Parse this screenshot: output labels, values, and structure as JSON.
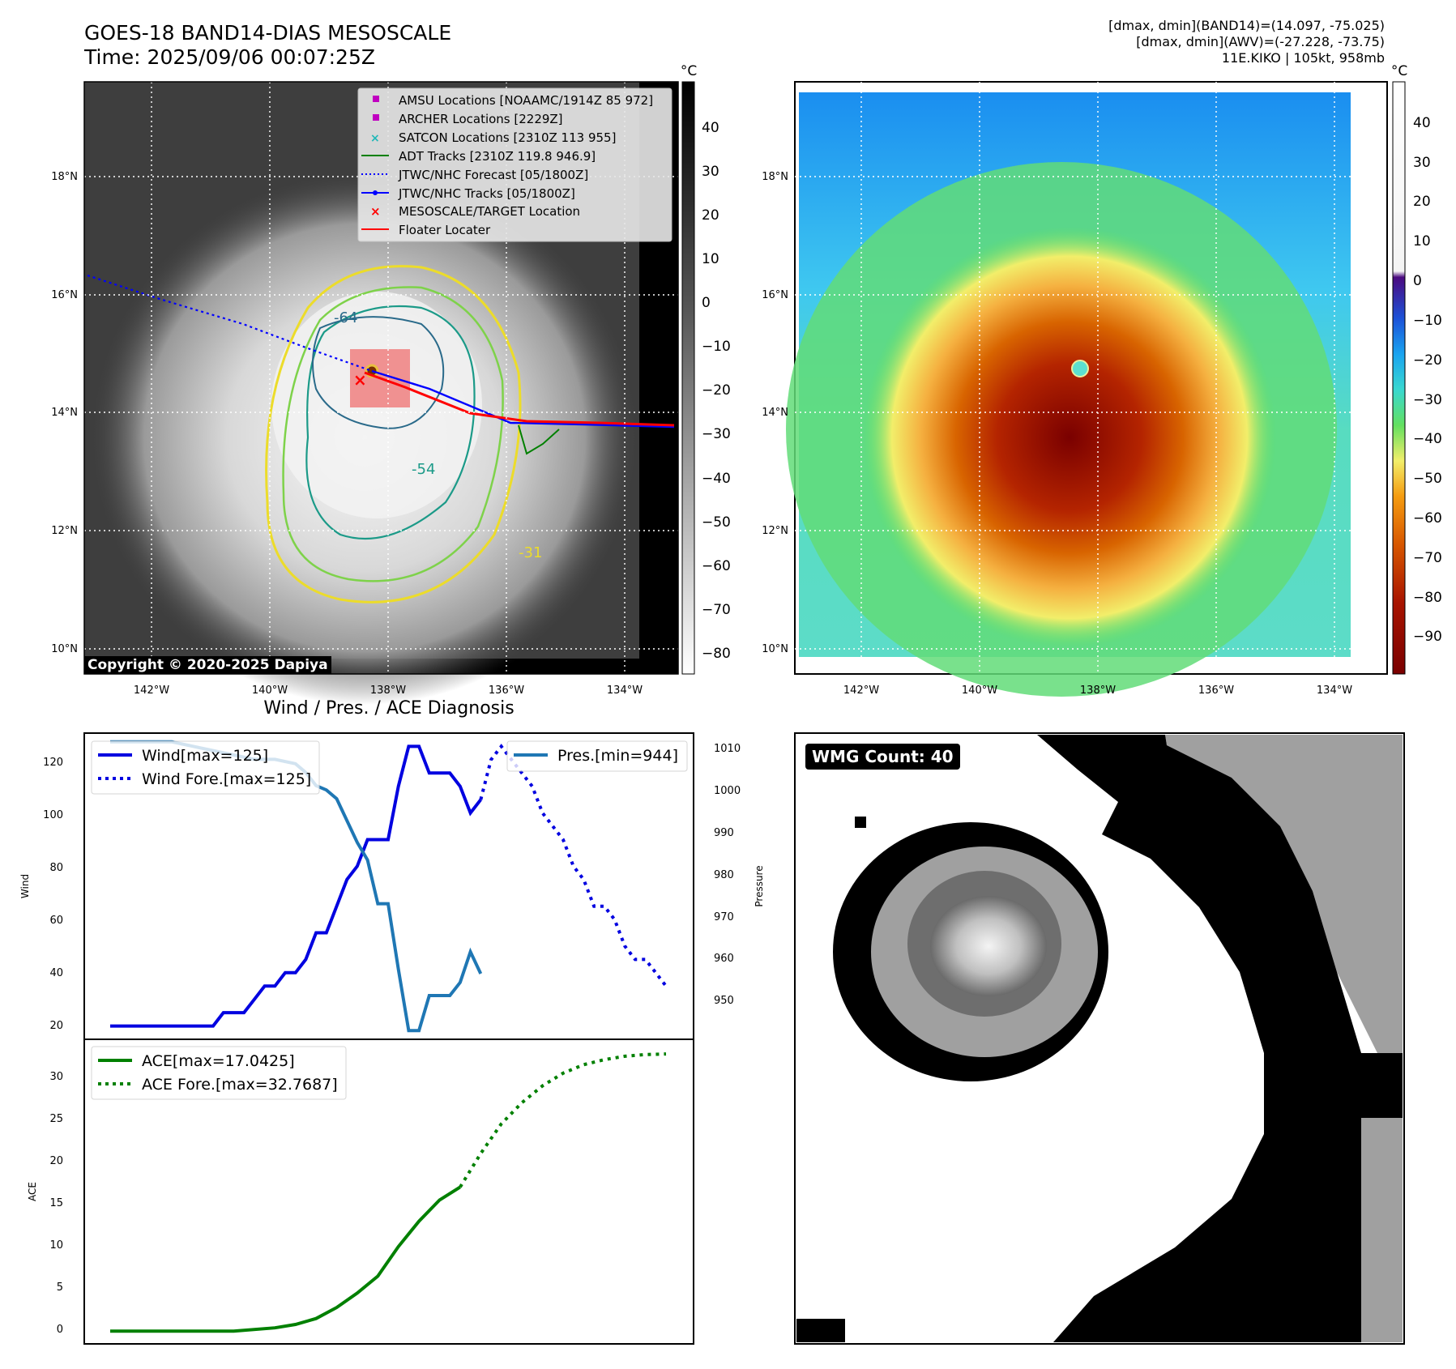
{
  "header": {
    "title_line1": "GOES-18 BAND14-DIAS MESOSCALE",
    "title_line2": "Time: 2025/09/06 00:07:25Z",
    "info_line1": "[dmax, dmin](BAND14)=(14.097, -75.025)",
    "info_line2": "[dmax, dmin](AWV)=(-27.228, -73.75)",
    "info_line3": "11E.KIKO | 105kt, 958mb"
  },
  "map": {
    "lon_ticks": [
      "142°W",
      "140°W",
      "138°W",
      "136°W",
      "134°W"
    ],
    "lat_ticks": [
      "18°N",
      "16°N",
      "14°N",
      "12°N",
      "10°N"
    ],
    "copyright": "Copyright © 2020-2025 Dapiya",
    "legend": [
      {
        "label": "AMSU Locations [NOAAMC/1914Z 85 972]",
        "color": "#c000c0",
        "kind": "square"
      },
      {
        "label": "ARCHER Locations [2229Z]",
        "color": "#c000c0",
        "kind": "square"
      },
      {
        "label": "SATCON Locations [2310Z 113 955]",
        "color": "#20b8b8",
        "kind": "x"
      },
      {
        "label": "ADT Tracks [2310Z 119.8 946.9]",
        "color": "#008000",
        "kind": "line"
      },
      {
        "label": "JTWC/NHC Forecast [05/1800Z]",
        "color": "#0000ff",
        "kind": "dotted"
      },
      {
        "label": "JTWC/NHC Tracks [05/1800Z]",
        "color": "#0000ff",
        "kind": "dotline"
      },
      {
        "label": "MESOSCALE/TARGET Location",
        "color": "#ff0000",
        "kind": "x"
      },
      {
        "label": "Floater Locater",
        "color": "#ff0000",
        "kind": "line"
      }
    ],
    "contour_labels": [
      "-64",
      "-54",
      "-31"
    ],
    "colorbar_gray": {
      "unit": "°C",
      "ticks": [
        "40",
        "30",
        "20",
        "10",
        "0",
        "−10",
        "−20",
        "−30",
        "−40",
        "−50",
        "−60",
        "−70",
        "−80"
      ]
    },
    "colorbar_color": {
      "unit": "°C",
      "ticks": [
        "40",
        "30",
        "20",
        "10",
        "0",
        "−10",
        "−20",
        "−30",
        "−40",
        "−50",
        "−60",
        "−70",
        "−80",
        "−90"
      ]
    }
  },
  "diagnosis": {
    "title": "Wind / Pres. / ACE Diagnosis",
    "wind_ylabel": "Wind",
    "pres_ylabel": "Pressure",
    "ace_ylabel": "ACE",
    "wind_ticks": [
      "120",
      "100",
      "80",
      "60",
      "40",
      "20"
    ],
    "pres_ticks": [
      "1010",
      "1000",
      "990",
      "980",
      "970",
      "960",
      "950"
    ],
    "ace_ticks": [
      "30",
      "25",
      "20",
      "15",
      "10",
      "5",
      "0"
    ],
    "legend_wind": "Wind[max=125]",
    "legend_wind_fore": "Wind Fore.[max=125]",
    "legend_pres": "Pres.[min=944]",
    "legend_ace": "ACE[max=17.0425]",
    "legend_ace_fore": "ACE Fore.[max=32.7687]"
  },
  "wmg": {
    "label": "WMG Count: 40"
  },
  "chart_data": [
    {
      "type": "line",
      "title": "Wind / Pres. / ACE Diagnosis",
      "ylabel": "Wind",
      "ylim": [
        15,
        130
      ],
      "x": [
        0,
        1,
        2,
        3,
        4,
        5,
        6,
        7,
        8,
        9,
        10,
        11,
        12,
        13,
        14,
        15,
        16,
        17,
        18,
        19,
        20,
        21,
        22,
        23,
        24,
        25,
        26,
        27,
        28,
        29,
        30,
        31,
        32,
        33,
        34,
        35,
        36,
        37,
        38,
        39,
        40,
        41,
        42,
        43,
        44,
        45,
        46,
        47,
        48,
        49,
        50,
        51,
        52,
        53,
        54
      ],
      "series": [
        {
          "name": "Wind[max=125]",
          "color": "#0000e0",
          "values": [
            20,
            20,
            20,
            20,
            20,
            20,
            20,
            20,
            20,
            20,
            20,
            25,
            25,
            25,
            30,
            35,
            35,
            40,
            40,
            45,
            55,
            55,
            65,
            75,
            80,
            90,
            90,
            90,
            110,
            125,
            125,
            115,
            115,
            115,
            110,
            100,
            105,
            null,
            null,
            null,
            null,
            null,
            null,
            null,
            null,
            null,
            null,
            null,
            null,
            null,
            null,
            null,
            null,
            null,
            null
          ]
        },
        {
          "name": "Wind Fore.[max=125]",
          "color": "#0000e0",
          "style": "dotted",
          "values": [
            null,
            null,
            null,
            null,
            null,
            null,
            null,
            null,
            null,
            null,
            null,
            null,
            null,
            null,
            null,
            null,
            null,
            null,
            null,
            null,
            null,
            null,
            null,
            null,
            null,
            null,
            null,
            null,
            null,
            null,
            null,
            null,
            null,
            null,
            null,
            null,
            105,
            120,
            125,
            120,
            115,
            110,
            100,
            95,
            90,
            80,
            75,
            65,
            65,
            60,
            50,
            45,
            45,
            40,
            35
          ]
        }
      ]
    },
    {
      "type": "line",
      "ylabel": "Pressure",
      "ylim": [
        942,
        1012
      ],
      "series": [
        {
          "name": "Pres.[min=944]",
          "color": "#1f77b4",
          "x": [
            0,
            2,
            4,
            6,
            8,
            10,
            12,
            14,
            16,
            18,
            19,
            20,
            21,
            22,
            23,
            24,
            25,
            26,
            27,
            28,
            29,
            30,
            31,
            32,
            33,
            34,
            35,
            36
          ],
          "values": [
            1010,
            1010,
            1010,
            1010,
            1009,
            1008,
            1007,
            1006,
            1006,
            1005,
            1003,
            1000,
            999,
            997,
            992,
            987,
            983,
            973,
            973,
            958,
            944,
            944,
            952,
            952,
            952,
            955,
            962,
            957
          ]
        }
      ]
    },
    {
      "type": "line",
      "ylabel": "ACE",
      "ylim": [
        -1.5,
        34.5
      ],
      "x": [
        0,
        4,
        8,
        12,
        16,
        18,
        20,
        22,
        24,
        26,
        28,
        30,
        32,
        34,
        36,
        38,
        40,
        42,
        44,
        46,
        48,
        50,
        52,
        54
      ],
      "series": [
        {
          "name": "ACE[max=17.0425]",
          "color": "#008000",
          "values": [
            0,
            0,
            0,
            0,
            0.4,
            0.8,
            1.5,
            2.8,
            4.5,
            6.5,
            10,
            13,
            15.5,
            17.04,
            null,
            null,
            null,
            null,
            null,
            null,
            null,
            null,
            null,
            null
          ]
        },
        {
          "name": "ACE Fore.[max=32.7687]",
          "color": "#008000",
          "style": "dotted",
          "values": [
            null,
            null,
            null,
            null,
            null,
            null,
            null,
            null,
            null,
            null,
            null,
            null,
            null,
            17.04,
            21,
            24.5,
            27,
            29,
            30.5,
            31.5,
            32.1,
            32.5,
            32.7,
            32.77
          ]
        }
      ]
    }
  ]
}
